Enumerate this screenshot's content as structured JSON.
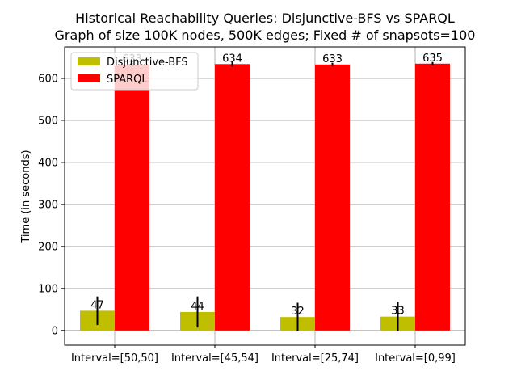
{
  "chart_data": {
    "type": "bar",
    "title": "Historical Reachability Queries: Disjunctive-BFS vs SPARQL",
    "subtitle": "Graph of size 100K nodes, 500K edges; Fixed # of snapsots=100",
    "xlabel": "",
    "ylabel": "Time (in seconds)",
    "ylim": [
      -35,
      675
    ],
    "yticks": [
      0,
      100,
      200,
      300,
      400,
      500,
      600
    ],
    "grid": true,
    "legend_position": "top-left",
    "categories": [
      "Interval=[50,50]",
      "Interval=[45,54]",
      "Interval=[25,74]",
      "Interval=[0,99]"
    ],
    "series": [
      {
        "name": "Disjunctive-BFS",
        "color": "#bfbf00",
        "values": [
          47,
          44,
          32,
          33
        ],
        "errors": [
          34,
          37,
          34,
          35
        ],
        "value_labels": [
          "47",
          "44",
          "32",
          "33"
        ]
      },
      {
        "name": "SPARQL",
        "color": "#ff0000",
        "values": [
          633,
          634,
          633,
          635
        ],
        "errors": [
          4,
          6,
          4,
          4
        ],
        "value_labels": [
          "633",
          "634",
          "633",
          "635"
        ]
      }
    ]
  }
}
